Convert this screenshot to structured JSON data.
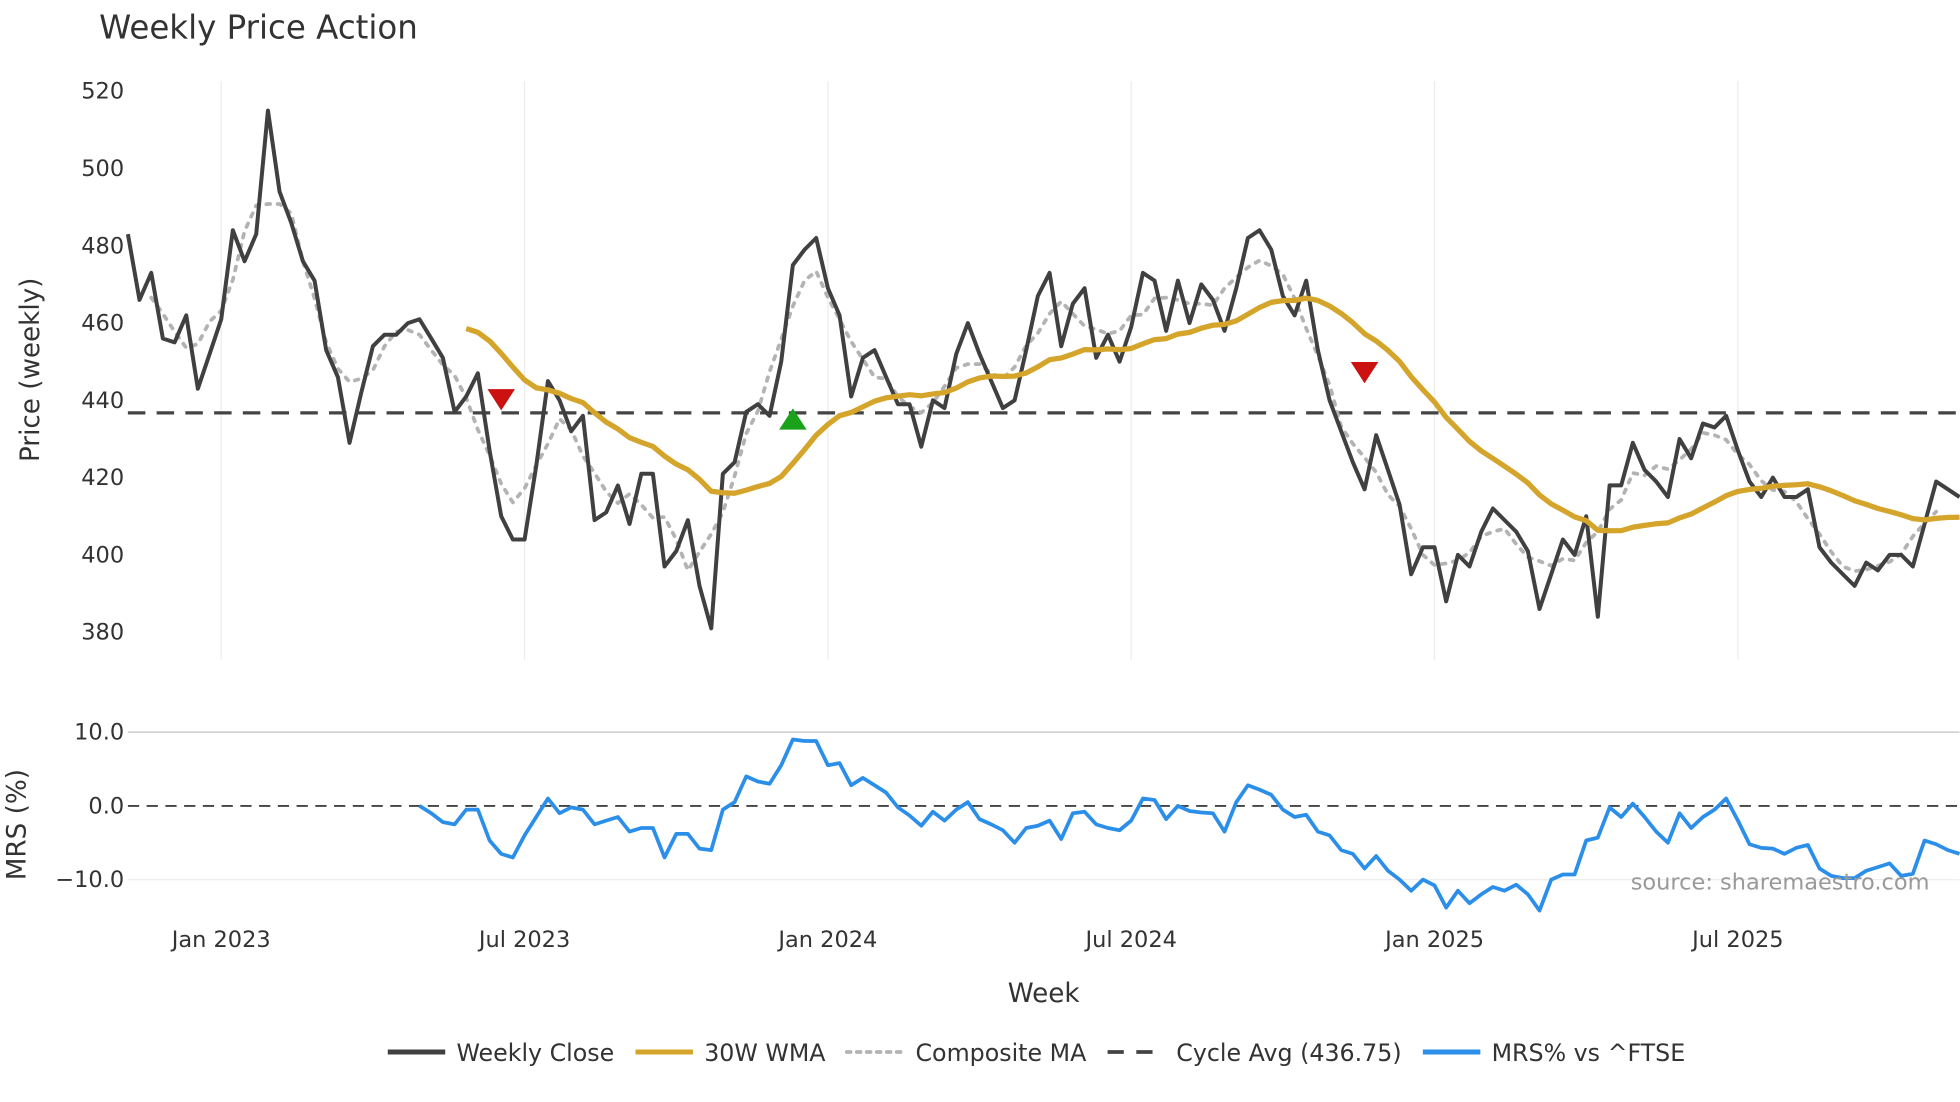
{
  "chart_data": {
    "type": "line",
    "title": "Weekly Price Action",
    "xlabel": "Week",
    "ylabel_top": "Price (weekly)",
    "ylabel_bottom": "MRS (%)",
    "x_ticks": [
      "Jan 2023",
      "Jul 2023",
      "Jan 2024",
      "Jul 2024",
      "Jan 2025",
      "Jul 2025"
    ],
    "x_tick_week_index": [
      8,
      34,
      60,
      86,
      112,
      138
    ],
    "top_yticks": [
      "520",
      "500",
      "480",
      "460",
      "440",
      "420",
      "400",
      "380"
    ],
    "top_ylim": [
      377,
      523
    ],
    "bottom_yticks": [
      "10.0",
      "0.0",
      "−10.0"
    ],
    "bottom_ylim": [
      -16,
      12
    ],
    "cycle_avg": 436.75,
    "weekly_close": [
      483,
      466,
      473,
      456,
      455,
      462,
      443,
      452,
      461,
      484,
      476,
      483,
      515,
      494,
      486,
      476,
      471,
      453,
      446,
      429,
      442,
      454,
      457,
      457,
      460,
      461,
      456,
      451,
      437,
      441,
      447,
      427,
      410,
      404,
      404,
      423,
      445,
      440,
      432,
      436,
      409,
      411,
      418,
      408,
      421,
      421,
      397,
      401,
      409,
      392,
      381,
      421,
      424,
      437,
      439,
      436,
      450,
      475,
      479,
      482,
      469,
      462,
      441,
      451,
      453,
      446,
      439,
      439,
      428,
      440,
      438,
      452,
      460,
      452,
      445,
      438,
      440,
      453,
      467,
      473,
      454,
      465,
      469,
      451,
      457,
      450,
      459,
      473,
      471,
      458,
      471,
      460,
      470,
      466,
      458,
      469,
      482,
      484,
      479,
      467,
      462,
      471,
      453,
      440,
      432,
      424,
      417,
      431,
      422,
      413,
      395,
      402,
      402,
      388,
      400,
      397,
      406,
      412,
      409,
      406,
      401,
      386,
      395,
      404,
      400,
      410,
      384,
      418,
      418,
      429,
      422,
      419,
      415,
      430,
      425,
      434,
      433,
      436,
      427,
      419,
      415,
      420,
      415,
      415,
      417,
      402,
      398,
      395,
      392,
      398,
      396,
      400,
      400,
      397,
      408,
      419,
      417,
      415
    ],
    "wma_period": 30,
    "composite_period": 5,
    "mrs_pct": [
      0,
      -1,
      -2.2,
      -2.5,
      -0.5,
      -0.5,
      -4.7,
      -6.5,
      -7,
      -4,
      -1.5,
      1,
      -1,
      -0.2,
      -0.5,
      -2.5,
      -2,
      -1.5,
      -3.5,
      -3,
      -3,
      -7,
      -3.8,
      -3.8,
      -5.8,
      -6,
      -0.5,
      0.5,
      4,
      3.3,
      3,
      5.5,
      9,
      8.8,
      8.8,
      5.5,
      5.8,
      2.8,
      3.8,
      2.8,
      1.8,
      -0.2,
      -1.3,
      -2.7,
      -0.8,
      -2,
      -0.5,
      0.5,
      -1.8,
      -2.5,
      -3.3,
      -5,
      -3,
      -2.7,
      -2,
      -4.5,
      -1,
      -0.8,
      -2.5,
      -3,
      -3.3,
      -2,
      1,
      0.8,
      -1.8,
      0,
      -0.7,
      -0.9,
      -1,
      -3.5,
      0.5,
      2.8,
      2.2,
      1.5,
      -0.5,
      -1.5,
      -1.2,
      -3.5,
      -4,
      -6,
      -6.5,
      -8.5,
      -6.8,
      -8.8,
      -10,
      -11.5,
      -10,
      -10.8,
      -13.8,
      -11.5,
      -13.2,
      -12,
      -11,
      -11.5,
      -10.7,
      -12,
      -14.2,
      -10,
      -9.3,
      -9.3,
      -4.7,
      -4.3,
      -0.2,
      -1.5,
      0.3,
      -1.5,
      -3.5,
      -5,
      -1,
      -3,
      -1.5,
      -0.5,
      1,
      -2,
      -5.2,
      -5.7,
      -5.8,
      -6.5,
      -5.7,
      -5.3,
      -8.5,
      -9.5,
      -9.8,
      -9.8,
      -8.8,
      -8.3,
      -7.8,
      -9.5,
      -9.2,
      -4.7,
      -5.2,
      -6,
      -6.5
    ],
    "signals": [
      {
        "type": "sell",
        "week_index": 32,
        "value": 440,
        "color": "#cc1111"
      },
      {
        "type": "buy",
        "week_index": 57,
        "value": 435,
        "color": "#1aa31a"
      },
      {
        "type": "sell",
        "week_index": 106,
        "value": 447,
        "color": "#cc1111"
      }
    ],
    "legend": [
      {
        "label": "Weekly Close",
        "color": "#404040",
        "style": "solid"
      },
      {
        "label": "30W WMA",
        "color": "#d4a52a",
        "style": "solid"
      },
      {
        "label": "Composite MA",
        "color": "#b3b3b3",
        "style": "dotted"
      },
      {
        "label": "Cycle Avg (436.75)",
        "color": "#444444",
        "style": "dashed"
      },
      {
        "label": "MRS% vs ^FTSE",
        "color": "#2b8fea",
        "style": "solid"
      }
    ],
    "legend_position": "bottom-center",
    "source": "source: sharemaestro.com"
  }
}
